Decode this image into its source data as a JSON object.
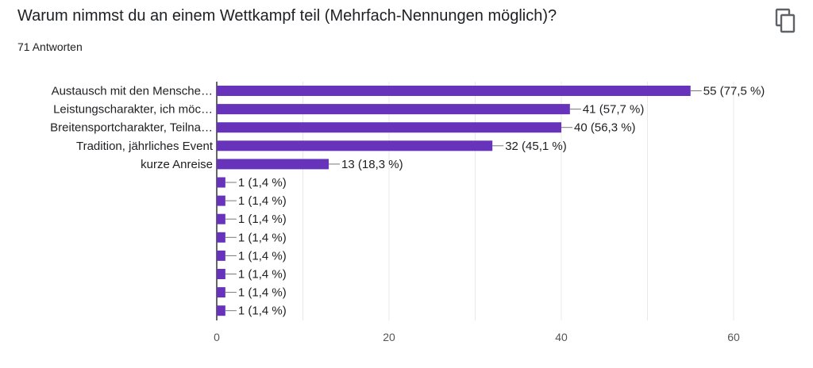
{
  "header": {
    "title": "Warum nimmst du an einem Wettkampf teil (Mehrfach-Nennungen möglich)?",
    "responses": "71 Antworten",
    "copy_icon": "copy-icon"
  },
  "colors": {
    "bar": "#6733bb",
    "grid": "#e8e8e8",
    "axis": "#333333",
    "text": "#202124",
    "tick": "#555555"
  },
  "chart_data": {
    "type": "bar",
    "orientation": "horizontal",
    "title": "Warum nimmst du an einem Wettkampf teil (Mehrfach-Nennungen möglich)?",
    "categories": [
      "Austausch mit den Mensche…",
      "Leistungscharakter, ich möc…",
      "Breitensportcharakter, Teilna…",
      "Tradition, jährliches Event",
      "kurze Anreise",
      "",
      "",
      "",
      "",
      "",
      "",
      "",
      ""
    ],
    "values": [
      55,
      41,
      40,
      32,
      13,
      1,
      1,
      1,
      1,
      1,
      1,
      1,
      1
    ],
    "data_labels": [
      "55 (77,5 %)",
      "41 (57,7 %)",
      "40 (56,3 %)",
      "32 (45,1 %)",
      "13 (18,3 %)",
      "1 (1,4 %)",
      "1 (1,4 %)",
      "1 (1,4 %)",
      "1 (1,4 %)",
      "1 (1,4 %)",
      "1 (1,4 %)",
      "1 (1,4 %)",
      "1 (1,4 %)"
    ],
    "xlim": [
      0,
      60
    ],
    "xticks": [
      "0",
      "20",
      "40",
      "60"
    ],
    "xtick_values": [
      0,
      20,
      40,
      60
    ],
    "grid": true,
    "legend": "none"
  }
}
